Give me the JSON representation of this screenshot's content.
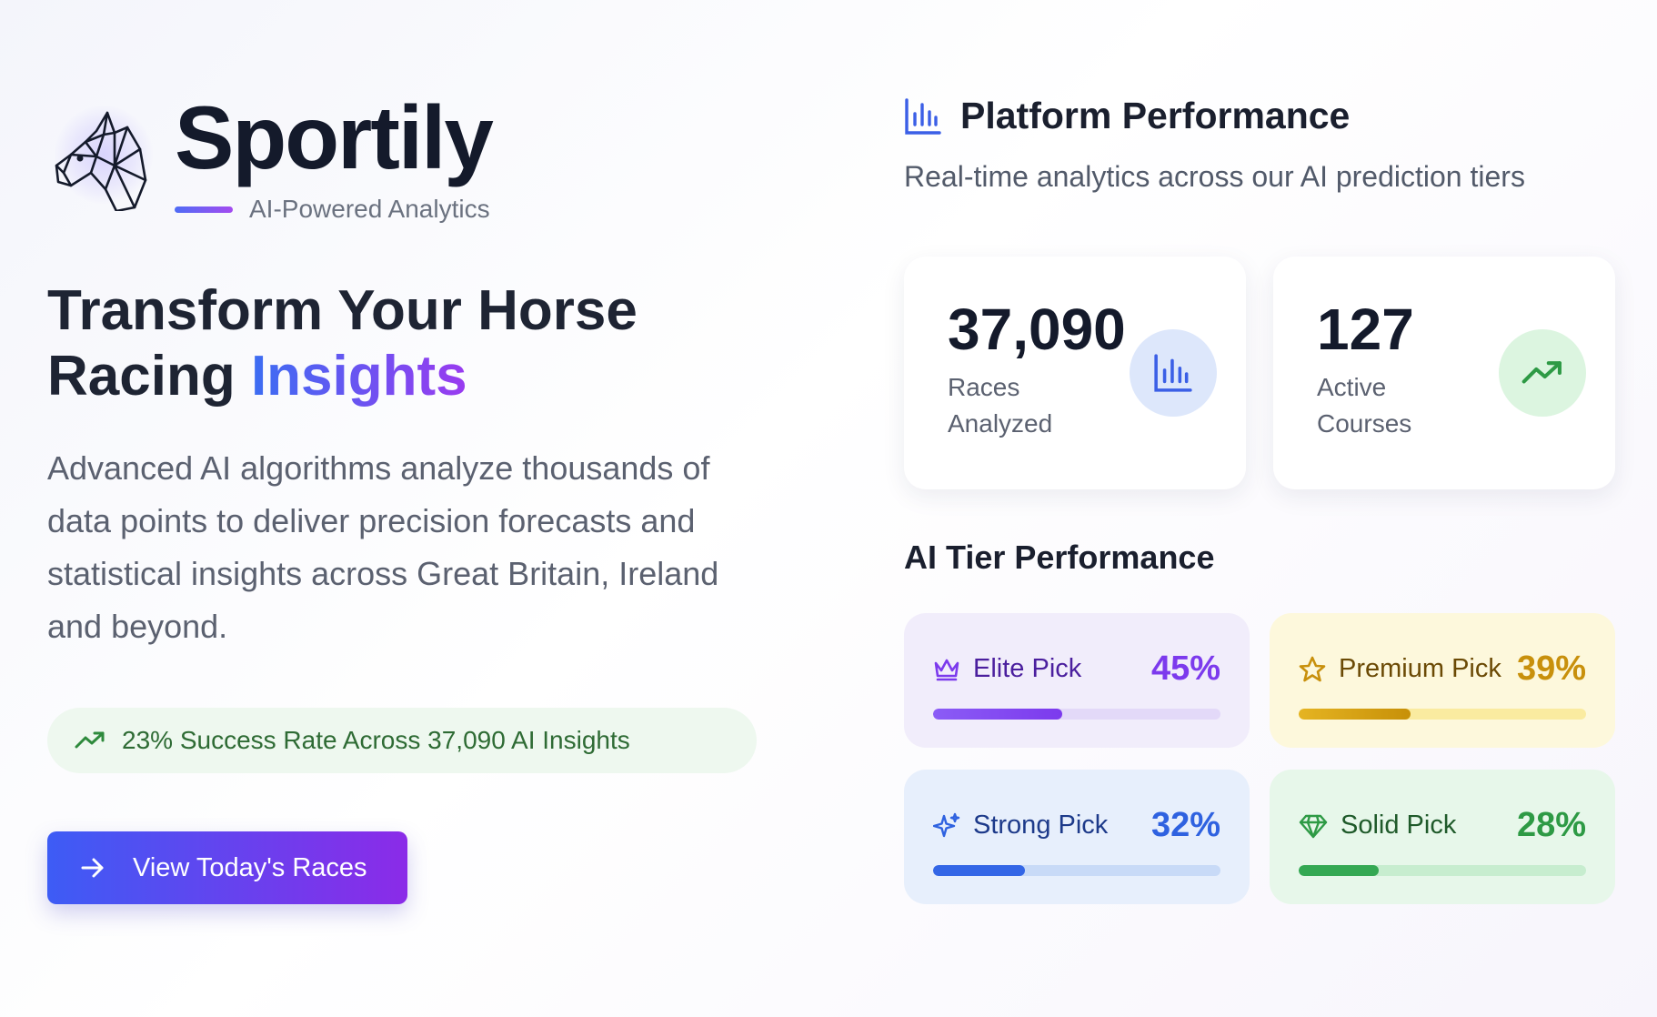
{
  "brand": {
    "name": "Sportily",
    "tagline": "AI-Powered Analytics",
    "logo_icon": "horse-head-icon",
    "accent_gradient": [
      "#4f6cf5",
      "#a44bf0"
    ]
  },
  "hero": {
    "headline_plain": "Transform Your Horse Racing",
    "headline_accent": "Insights",
    "description": "Advanced AI algorithms analyze thousands of data points to deliver precision forecasts and statistical insights across Great Britain, Ireland and beyond."
  },
  "success_pill": {
    "icon": "trending-up-icon",
    "text": "23% Success Rate Across 37,090 AI Insights"
  },
  "cta": {
    "icon": "arrow-right-icon",
    "label": "View Today's Races"
  },
  "performance": {
    "icon": "bar-chart-icon",
    "title": "Platform Performance",
    "subtitle": "Real-time analytics across our AI prediction tiers",
    "stats": [
      {
        "value": "37,090",
        "label": "Races Analyzed",
        "icon": "bar-chart-icon"
      },
      {
        "value": "127",
        "label": "Active Courses",
        "icon": "trending-up-icon"
      }
    ]
  },
  "tiers": {
    "title": "AI Tier Performance",
    "items": [
      {
        "name": "Elite Pick",
        "percent": "45%",
        "fill": 0.45,
        "icon": "crown-icon",
        "color": "#7c3aed"
      },
      {
        "name": "Premium Pick",
        "percent": "39%",
        "fill": 0.39,
        "icon": "star-icon",
        "color": "#c8900c"
      },
      {
        "name": "Strong Pick",
        "percent": "32%",
        "fill": 0.32,
        "icon": "sparkles-icon",
        "color": "#2f62e0"
      },
      {
        "name": "Solid Pick",
        "percent": "28%",
        "fill": 0.28,
        "icon": "diamond-icon",
        "color": "#2e9a45"
      }
    ]
  }
}
